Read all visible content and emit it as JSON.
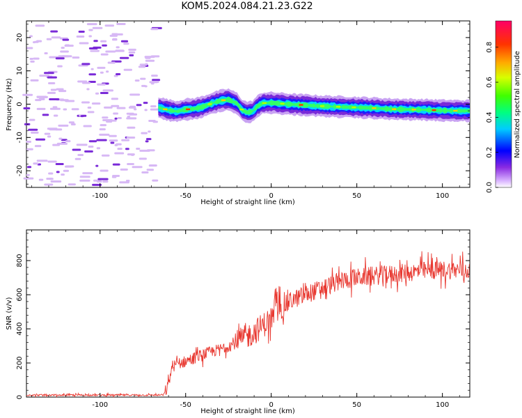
{
  "title": "KOM5.2024.084.21.23.G22",
  "chart_data": [
    {
      "type": "heatmap",
      "xlabel": "Height of straight line (km)",
      "ylabel": "Frequency (Hz)",
      "xlim": [
        -143,
        116
      ],
      "ylim": [
        -25,
        25
      ],
      "x_ticks": [
        -100,
        -50,
        0,
        50,
        100
      ],
      "y_ticks": [
        -20,
        -10,
        0,
        10,
        20
      ],
      "colorbar": {
        "label": "Normalized spectral amplitude",
        "range": [
          0,
          0.95
        ],
        "ticks": [
          0.0,
          0.2,
          0.4,
          0.6,
          0.8
        ]
      },
      "noise_region_x": [
        -143,
        -66
      ],
      "signal_track": {
        "x": [
          -66,
          -60,
          -55,
          -50,
          -45,
          -40,
          -35,
          -30,
          -25,
          -20,
          -17,
          -14,
          -11,
          -8,
          -5,
          0,
          5,
          10,
          20,
          30,
          40,
          50,
          60,
          70,
          80,
          90,
          100,
          110,
          116
        ],
        "freq": [
          -1,
          -1.8,
          -2.2,
          -1.6,
          -1.4,
          -0.8,
          0.2,
          1.0,
          1.4,
          0.2,
          -1.8,
          -2.5,
          -2.2,
          -0.6,
          0.3,
          0.4,
          0.2,
          0.0,
          -0.3,
          -0.6,
          -0.8,
          -1.0,
          -1.2,
          -1.5,
          -1.6,
          -1.7,
          -1.9,
          -2.0,
          -2.0
        ]
      }
    },
    {
      "type": "line",
      "xlabel": "Height of straight line (km)",
      "ylabel": "SNR (v/v)",
      "xlim": [
        -143,
        116
      ],
      "ylim": [
        0,
        980
      ],
      "x_ticks": [
        -100,
        -50,
        0,
        50,
        100
      ],
      "y_ticks": [
        0,
        200,
        400,
        600,
        800
      ],
      "color": "#e8372f",
      "trend": {
        "x": [
          -143,
          -63,
          -60,
          -58,
          -50,
          -40,
          -30,
          -20,
          -15,
          -10,
          -5,
          0,
          5,
          10,
          20,
          30,
          40,
          50,
          60,
          70,
          80,
          90,
          100,
          110,
          116
        ],
        "y": [
          12,
          12,
          70,
          180,
          210,
          250,
          280,
          320,
          350,
          380,
          420,
          460,
          520,
          560,
          600,
          640,
          680,
          700,
          710,
          720,
          730,
          740,
          745,
          745,
          745
        ]
      }
    }
  ]
}
